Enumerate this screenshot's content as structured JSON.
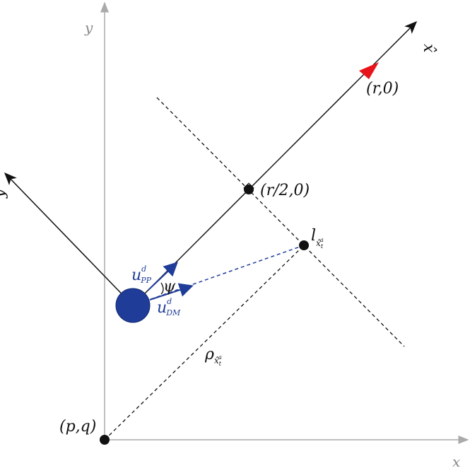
{
  "labels": {
    "axis_y": "y",
    "axis_x": "x",
    "axis_x_hat": "x̂",
    "axis_y_hat": "ŷ",
    "target": "(r,0)",
    "midpoint": "(r/2,0)",
    "origin": "(p,q)",
    "landmark": {
      "main": "l",
      "sub": "x̂",
      "sub_sub": "t",
      "sub_sup": "a"
    },
    "range": {
      "main": "ρ",
      "sub": "x̂",
      "sub_sub": "t",
      "sub_sup": "a"
    },
    "u_pp": {
      "main": "u",
      "sup": "d",
      "sub": "PP"
    },
    "u_dm": {
      "main": "u",
      "sup": "d",
      "sub": "DM"
    },
    "angle": "ψ"
  }
}
